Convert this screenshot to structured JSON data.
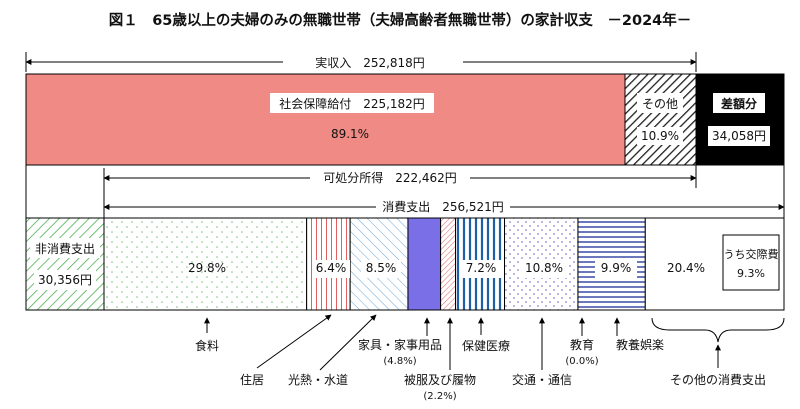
{
  "chart_data": {
    "type": "bar",
    "title": "図１　65歳以上の夫婦のみの無職世帯（夫婦高齢者無職世帯）の家計収支　－2024年－",
    "income": {
      "label": "実収入　252,818円",
      "total": 252818,
      "segments": [
        {
          "name": "社会保障給付",
          "value": 225182,
          "share": 89.1,
          "label": "社会保障給付　225,182円",
          "pct_label": "89.1%"
        },
        {
          "name": "その他",
          "value": 27636,
          "share": 10.9,
          "label": "その他",
          "pct_label": "10.9%"
        }
      ],
      "deficit": {
        "label": "差額分",
        "value": 34058,
        "value_label": "34,058円"
      }
    },
    "disposable": {
      "label": "可処分所得　222,462円",
      "value": 222462
    },
    "spending": {
      "label": "消費支出　256,521円",
      "total": 256521,
      "non_consumption": {
        "label": "非消費支出",
        "value": 30356,
        "value_label": "30,356円"
      },
      "segments": [
        {
          "name": "食料",
          "share": 29.8,
          "pct_label": "29.8%"
        },
        {
          "name": "住居",
          "share": 6.4,
          "pct_label": "6.4%"
        },
        {
          "name": "光熱・水道",
          "share": 8.5,
          "pct_label": "8.5%"
        },
        {
          "name": "家具・家事用品",
          "share": 4.8,
          "pct_label": "(4.8%)"
        },
        {
          "name": "被服及び履物",
          "share": 2.2,
          "pct_label": "(2.2%)"
        },
        {
          "name": "保健医療",
          "share": 7.2,
          "pct_label": "7.2%"
        },
        {
          "name": "交通・通信",
          "share": 10.8,
          "pct_label": "10.8%"
        },
        {
          "name": "教育",
          "share": 0.0,
          "pct_label": "(0.0%)"
        },
        {
          "name": "教養娯楽",
          "share": 9.9,
          "pct_label": "9.9%"
        },
        {
          "name": "その他の消費支出",
          "share": 20.4,
          "pct_label": "20.4%"
        }
      ],
      "sub_note": {
        "line1": "うち交際費",
        "line2": "9.3%",
        "share": 9.3
      }
    },
    "colors": {
      "social_security": "#f08a84",
      "deficit": "#000000",
      "non_consumption_hatch": "#4caf50",
      "housing_hatch": "#e06060",
      "utilities_hatch": "#6aa6d8",
      "furniture": "#7b6fe8",
      "clothing_hatch": "#e06060",
      "health_hatch": "#1e5fa8",
      "transport_dots": "#8c86d0",
      "recreation_hatch": "#2e3fa0",
      "food_dots": "#80c080"
    }
  }
}
